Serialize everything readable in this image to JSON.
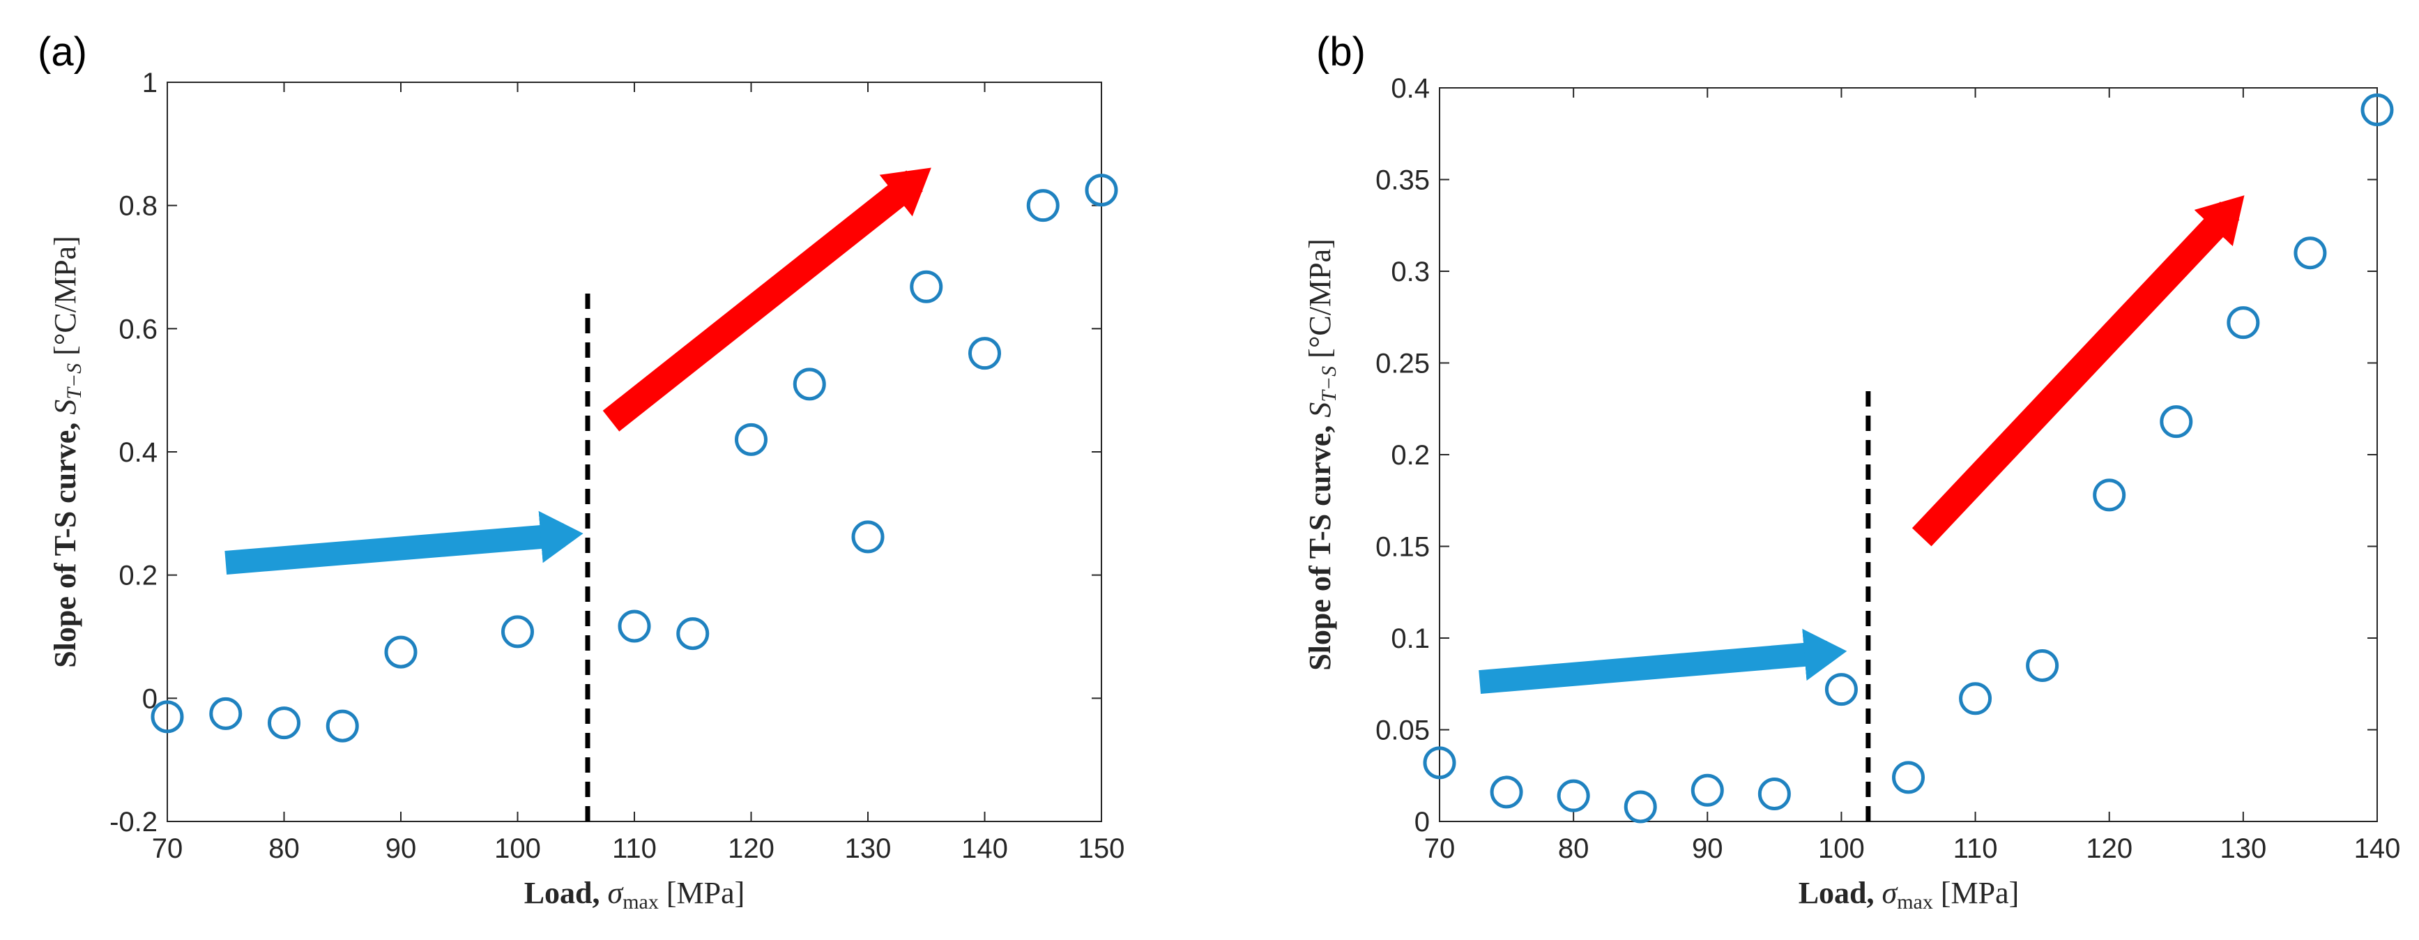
{
  "colors": {
    "marker": "#1f82c0",
    "blue_arrow": "#1d9ad8",
    "red_arrow": "#ff0000",
    "divider": "#000000",
    "axis": "#262626"
  },
  "chart_data": [
    {
      "type": "scatter",
      "panel_label": "(a)",
      "x": [
        70,
        75,
        80,
        85,
        90,
        100,
        110,
        115,
        120,
        125,
        130,
        135,
        140,
        145,
        150
      ],
      "y": [
        -0.03,
        -0.025,
        -0.04,
        -0.045,
        0.075,
        0.108,
        0.117,
        0.105,
        0.42,
        0.51,
        0.262,
        0.668,
        0.56,
        0.8,
        0.825
      ],
      "xlim": [
        70,
        150
      ],
      "ylim": [
        -0.2,
        1
      ],
      "xticks": [
        70,
        80,
        90,
        100,
        110,
        120,
        130,
        140,
        150
      ],
      "yticks": [
        -0.2,
        0,
        0.2,
        0.4,
        0.6,
        0.8,
        1
      ],
      "xtick_labels": [
        "70",
        "80",
        "90",
        "100",
        "110",
        "120",
        "130",
        "140",
        "150"
      ],
      "ytick_labels": [
        "-0.2",
        "0",
        "0.2",
        "0.4",
        "0.6",
        "0.8",
        "1"
      ],
      "xlabel": {
        "prefix": "Load, ",
        "symbol": "σ",
        "subscript": "max",
        "suffix": " [MPa]"
      },
      "ylabel": {
        "prefix": "Slope of T-S curve, ",
        "symbol": "S",
        "subscript": "T−S",
        "suffix": " [°C/MPa]"
      },
      "divider_x": 106,
      "divider_y_range": [
        -0.2,
        0.67
      ],
      "blue_arrow": {
        "from": [
          75,
          0.22
        ],
        "to": [
          104,
          0.265
        ]
      },
      "red_arrow": {
        "from": [
          108,
          0.45
        ],
        "to": [
          134,
          0.84
        ]
      }
    },
    {
      "type": "scatter",
      "panel_label": "(b)",
      "x": [
        70,
        75,
        80,
        85,
        90,
        95,
        100,
        105,
        110,
        115,
        120,
        125,
        130,
        135,
        140
      ],
      "y": [
        0.032,
        0.016,
        0.014,
        0.008,
        0.017,
        0.015,
        0.072,
        0.024,
        0.067,
        0.085,
        0.178,
        0.218,
        0.272,
        0.31,
        0.388
      ],
      "xlim": [
        70,
        140
      ],
      "ylim": [
        0,
        0.4
      ],
      "xticks": [
        70,
        80,
        90,
        100,
        110,
        120,
        130,
        140
      ],
      "yticks": [
        0,
        0.05,
        0.1,
        0.15,
        0.2,
        0.25,
        0.3,
        0.35,
        0.4
      ],
      "xtick_labels": [
        "70",
        "80",
        "90",
        "100",
        "110",
        "120",
        "130",
        "140"
      ],
      "ytick_labels": [
        "0",
        "0.05",
        "0.1",
        "0.15",
        "0.2",
        "0.25",
        "0.3",
        "0.35",
        "0.4"
      ],
      "xlabel": {
        "prefix": "Load, ",
        "symbol": "σ",
        "subscript": "max",
        "suffix": " [MPa]"
      },
      "ylabel": {
        "prefix": "Slope of T-S curve, ",
        "symbol": "S",
        "subscript": "T−S",
        "suffix": " [°C/MPa]"
      },
      "divider_x": 102,
      "divider_y_range": [
        0,
        0.235
      ],
      "blue_arrow": {
        "from": [
          73,
          0.076
        ],
        "to": [
          99,
          0.092
        ]
      },
      "red_arrow": {
        "from": [
          106,
          0.155
        ],
        "to": [
          129,
          0.333
        ]
      }
    }
  ]
}
